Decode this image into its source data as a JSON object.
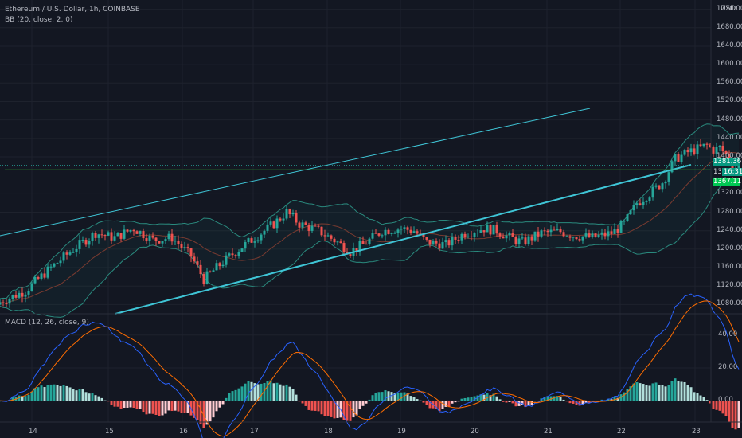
{
  "legend": {
    "symbol": "Ethereum / U.S. Dollar, 1h, COINBASE",
    "bb": "BB (20, close, 2, 0)",
    "macd": "MACD (12, 26, close, 9)"
  },
  "currency": "USD",
  "price_axis": [
    "1720.00",
    "1680.00",
    "1640.00",
    "1600.00",
    "1560.00",
    "1520.00",
    "1480.00",
    "1440.00",
    "1400.00",
    "1320.00",
    "1280.00",
    "1240.00",
    "1200.00",
    "1160.00",
    "1120.00",
    "1080.00"
  ],
  "price_tags": {
    "current": "1381.36",
    "countdown": "16:31",
    "countdown_prefix": "13",
    "bb_level": "1367.11"
  },
  "macd_axis": [
    "40.00",
    "20.00",
    "0.00"
  ],
  "time_axis": [
    "14",
    "15",
    "16",
    "17",
    "18",
    "19",
    "20",
    "21",
    "22",
    "23"
  ],
  "colors": {
    "background": "#131722",
    "up": "#26a69a",
    "down": "#ef5350",
    "channel": "#3fc5d6",
    "horizontal": "#2ea02e",
    "bb_band": "#2a8a7e",
    "bb_basis": "#7a3b30",
    "macd_line": "#2962ff",
    "signal_line": "#ff6d00",
    "tag_green": "#089981",
    "tag_lime": "#00c853"
  },
  "chart_data": {
    "type": "candlestick",
    "x_ticks": [
      "14",
      "15",
      "16",
      "17",
      "18",
      "19",
      "20",
      "21",
      "22",
      "23"
    ],
    "y_range": [
      1060,
      1740
    ],
    "horizontal_line": 1372,
    "last_price": 1381.36,
    "bb_level": 1367.11,
    "macd_range": [
      -13,
      52
    ],
    "price_waypoints": [
      [
        0,
        1085
      ],
      [
        8,
        1110
      ],
      [
        16,
        1160
      ],
      [
        24,
        1205
      ],
      [
        30,
        1235
      ],
      [
        36,
        1225
      ],
      [
        42,
        1245
      ],
      [
        48,
        1220
      ],
      [
        54,
        1225
      ],
      [
        60,
        1185
      ],
      [
        64,
        1135
      ],
      [
        68,
        1160
      ],
      [
        74,
        1195
      ],
      [
        80,
        1225
      ],
      [
        86,
        1255
      ],
      [
        90,
        1280
      ],
      [
        94,
        1255
      ],
      [
        100,
        1240
      ],
      [
        106,
        1215
      ],
      [
        110,
        1195
      ],
      [
        114,
        1210
      ],
      [
        120,
        1240
      ],
      [
        126,
        1245
      ],
      [
        130,
        1240
      ],
      [
        134,
        1215
      ],
      [
        140,
        1210
      ],
      [
        146,
        1235
      ],
      [
        152,
        1245
      ],
      [
        156,
        1240
      ],
      [
        160,
        1225
      ],
      [
        164,
        1215
      ],
      [
        170,
        1235
      ],
      [
        176,
        1238
      ],
      [
        180,
        1230
      ],
      [
        186,
        1225
      ],
      [
        192,
        1235
      ],
      [
        196,
        1255
      ],
      [
        200,
        1300
      ],
      [
        204,
        1320
      ],
      [
        208,
        1345
      ],
      [
        212,
        1395
      ],
      [
        216,
        1410
      ],
      [
        220,
        1420
      ],
      [
        222,
        1425
      ],
      [
        224,
        1415
      ],
      [
        226,
        1420
      ],
      [
        228,
        1405
      ],
      [
        230,
        1375
      ],
      [
        232,
        1381
      ]
    ]
  }
}
